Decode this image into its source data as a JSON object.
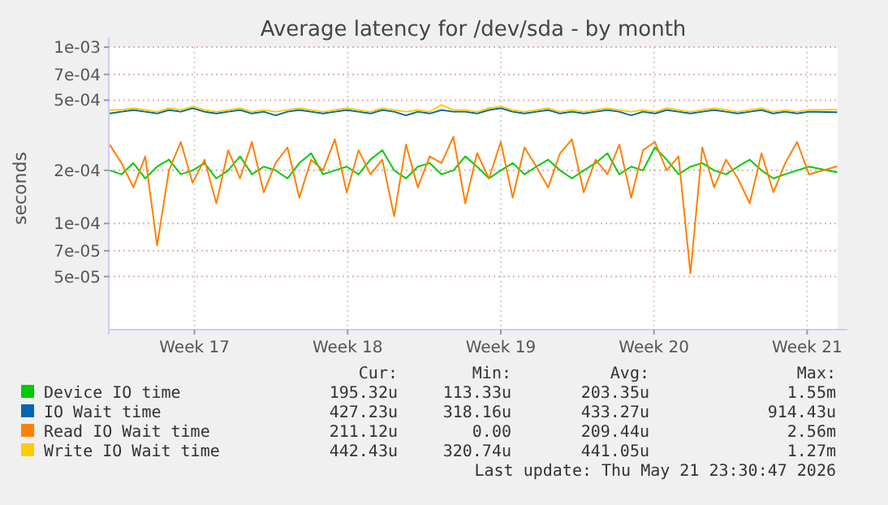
{
  "chart_data": {
    "type": "line",
    "title": "Average latency for /dev/sda - by month",
    "ylabel": "seconds",
    "log": "y",
    "grid": true,
    "legend": "bottom",
    "marker": "none",
    "line_style": "solid",
    "x": [
      "2026-04-18T17:00",
      "2026-04-19T06:00",
      "2026-04-19T19:00",
      "2026-04-20T08:00",
      "2026-04-20T21:00",
      "2026-04-21T10:00",
      "2026-04-21T23:00",
      "2026-04-22T12:00",
      "2026-04-23T01:00",
      "2026-04-23T14:00",
      "2026-04-24T03:00",
      "2026-04-24T16:00",
      "2026-04-25T05:00",
      "2026-04-25T18:00",
      "2026-04-26T07:00",
      "2026-04-26T20:00",
      "2026-04-27T09:00",
      "2026-04-27T22:00",
      "2026-04-28T11:00",
      "2026-04-29T00:00",
      "2026-04-29T13:00",
      "2026-04-30T02:00",
      "2026-04-30T15:00",
      "2026-05-01T04:00",
      "2026-05-01T17:00",
      "2026-05-02T06:00",
      "2026-05-02T19:00",
      "2026-05-03T08:00",
      "2026-05-03T21:00",
      "2026-05-04T10:00",
      "2026-05-04T23:00",
      "2026-05-05T12:00",
      "2026-05-06T01:00",
      "2026-05-06T14:00",
      "2026-05-07T03:00",
      "2026-05-07T16:00",
      "2026-05-08T05:00",
      "2026-05-08T18:00",
      "2026-05-09T07:00",
      "2026-05-09T20:00",
      "2026-05-10T09:00",
      "2026-05-10T22:00",
      "2026-05-11T11:00",
      "2026-05-12T00:00",
      "2026-05-12T13:00",
      "2026-05-13T02:00",
      "2026-05-13T15:00",
      "2026-05-14T04:00",
      "2026-05-14T17:00",
      "2026-05-15T06:00",
      "2026-05-15T19:00",
      "2026-05-16T08:00",
      "2026-05-16T21:00",
      "2026-05-17T10:00",
      "2026-05-17T23:00",
      "2026-05-18T12:00",
      "2026-05-19T01:00",
      "2026-05-19T14:00",
      "2026-05-20T03:00",
      "2026-05-20T16:00",
      "2026-05-21T23:00"
    ],
    "xlim": [
      "2026-04-18T16:00",
      "2026-05-21T23:30"
    ],
    "xticks": [
      {
        "value": "2026-04-22T14:00",
        "label": "Week 17"
      },
      {
        "value": "2026-04-29T14:00",
        "label": "Week 18"
      },
      {
        "value": "2026-05-06T14:00",
        "label": "Week 19"
      },
      {
        "value": "2026-05-13T14:00",
        "label": "Week 20"
      },
      {
        "value": "2026-05-20T14:00",
        "label": "Week 21"
      }
    ],
    "ylim": [
      2.5e-05,
      0.001
    ],
    "yticks": [
      {
        "value": 5e-05,
        "label": "5e-05"
      },
      {
        "value": 7e-05,
        "label": "7e-05"
      },
      {
        "value": 0.0001,
        "label": "1e-04"
      },
      {
        "value": 0.0002,
        "label": "2e-04"
      },
      {
        "value": 0.0005,
        "label": "5e-04"
      },
      {
        "value": 0.0007,
        "label": "7e-04"
      },
      {
        "value": 0.001,
        "label": "1e-03"
      }
    ],
    "series": [
      {
        "name": "Device IO time",
        "color": "#00cc00",
        "values": [
          0.0002,
          0.00019,
          0.00022,
          0.00018,
          0.00021,
          0.00023,
          0.00019,
          0.0002,
          0.00022,
          0.00018,
          0.0002,
          0.00024,
          0.00019,
          0.00021,
          0.0002,
          0.00018,
          0.00022,
          0.00025,
          0.00019,
          0.0002,
          0.00021,
          0.00019,
          0.00023,
          0.00026,
          0.0002,
          0.00018,
          0.00021,
          0.00022,
          0.00019,
          0.0002,
          0.00024,
          0.00021,
          0.00018,
          0.0002,
          0.00022,
          0.00019,
          0.00021,
          0.00023,
          0.0002,
          0.00018,
          0.0002,
          0.00022,
          0.00025,
          0.00019,
          0.00021,
          0.0002,
          0.00027,
          0.00023,
          0.00019,
          0.00021,
          0.00022,
          0.0002,
          0.00019,
          0.00021,
          0.00023,
          0.0002,
          0.00018,
          0.00019,
          0.0002,
          0.00021,
          0.000195
        ]
      },
      {
        "name": "IO Wait time",
        "color": "#0066b3",
        "values": [
          0.00042,
          0.00043,
          0.00044,
          0.00043,
          0.00042,
          0.00044,
          0.00043,
          0.00045,
          0.00043,
          0.00042,
          0.00043,
          0.00044,
          0.00042,
          0.00043,
          0.00041,
          0.00043,
          0.00044,
          0.00043,
          0.00042,
          0.00043,
          0.00044,
          0.00043,
          0.00042,
          0.00044,
          0.00043,
          0.00041,
          0.00043,
          0.00042,
          0.00044,
          0.00043,
          0.00043,
          0.00042,
          0.00044,
          0.00045,
          0.00043,
          0.00042,
          0.00043,
          0.00044,
          0.00042,
          0.00043,
          0.00042,
          0.00043,
          0.00044,
          0.00043,
          0.00041,
          0.00043,
          0.00042,
          0.00044,
          0.00043,
          0.00042,
          0.00043,
          0.00044,
          0.00043,
          0.00042,
          0.00043,
          0.00044,
          0.00042,
          0.00043,
          0.00042,
          0.00043,
          0.000427
        ]
      },
      {
        "name": "Read IO Wait time",
        "color": "#ff8000",
        "values": [
          0.00028,
          0.00022,
          0.00016,
          0.00024,
          7.5e-05,
          0.0002,
          0.00029,
          0.00017,
          0.00023,
          0.00013,
          0.00026,
          0.00018,
          0.00029,
          0.00015,
          0.00022,
          0.00027,
          0.00014,
          0.00023,
          0.0002,
          0.0003,
          0.00015,
          0.00026,
          0.00019,
          0.00023,
          0.00011,
          0.00028,
          0.00016,
          0.00024,
          0.00022,
          0.00031,
          0.00013,
          0.00025,
          0.00018,
          0.00029,
          0.00014,
          0.00027,
          0.00021,
          0.00016,
          0.00025,
          0.0003,
          0.00015,
          0.00023,
          0.00019,
          0.00028,
          0.00014,
          0.00026,
          0.00029,
          0.0002,
          0.00024,
          5.2e-05,
          0.00027,
          0.00016,
          0.00023,
          0.00018,
          0.00013,
          0.00025,
          0.00015,
          0.00022,
          0.00029,
          0.00019,
          0.000211
        ]
      },
      {
        "name": "Write IO Wait time",
        "color": "#ffcc00",
        "values": [
          0.00044,
          0.00044,
          0.00045,
          0.00044,
          0.00043,
          0.00045,
          0.00044,
          0.00046,
          0.00044,
          0.00043,
          0.00044,
          0.00045,
          0.00043,
          0.00044,
          0.00043,
          0.00044,
          0.00045,
          0.00044,
          0.00043,
          0.00044,
          0.00045,
          0.00044,
          0.00043,
          0.00045,
          0.00044,
          0.00043,
          0.00044,
          0.00043,
          0.00047,
          0.00044,
          0.00044,
          0.00043,
          0.00045,
          0.00046,
          0.00044,
          0.00043,
          0.00044,
          0.00045,
          0.00043,
          0.00044,
          0.00043,
          0.00044,
          0.00045,
          0.00044,
          0.00043,
          0.00044,
          0.00043,
          0.00045,
          0.00044,
          0.00043,
          0.00044,
          0.00045,
          0.00044,
          0.00043,
          0.00044,
          0.00045,
          0.00043,
          0.00044,
          0.00043,
          0.00044,
          0.000442
        ]
      }
    ],
    "annotations": [
      "Cur:",
      "Min:",
      "Avg:",
      "Max:",
      "195.32u",
      "113.33u",
      "203.35u",
      "1.55m",
      "427.23u",
      "318.16u",
      "433.27u",
      "914.43u",
      "211.12u",
      "0.00",
      "209.44u",
      "2.56m",
      "442.43u",
      "320.74u",
      "441.05u",
      "1.27m",
      "Last update: Thu May 21 23:30:47 2026"
    ]
  }
}
